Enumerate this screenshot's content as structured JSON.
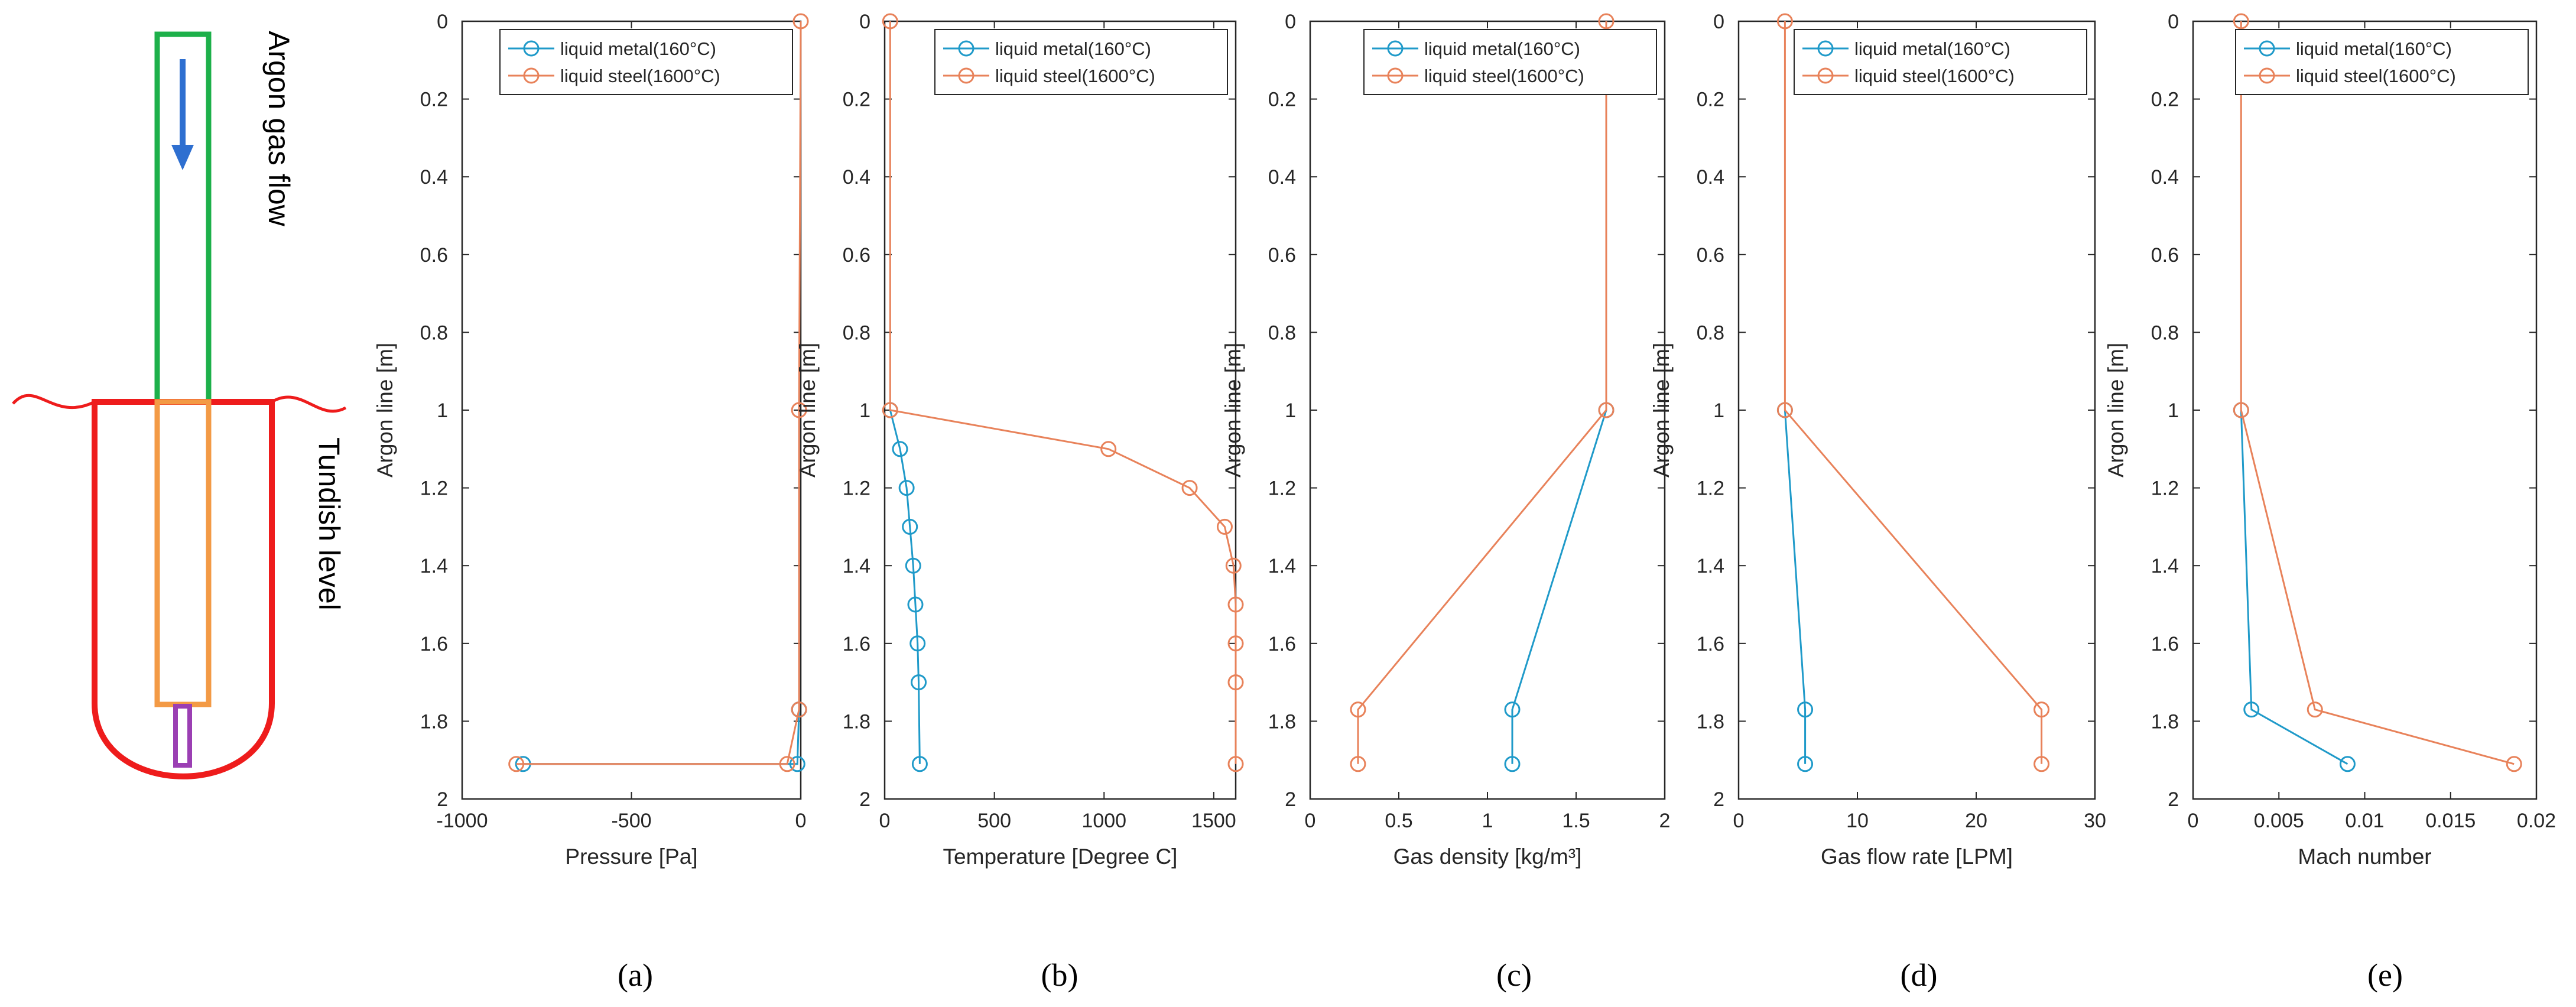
{
  "schematic": {
    "argon_label": "Argon gas flow",
    "tundish_label": "Tundish level",
    "colors": {
      "argon_tube": "#1db04a",
      "arrow": "#2e6fd0",
      "tundish": "#ee1c1c",
      "inner_tube": "#f39a45",
      "nozzle": "#9b3fb3"
    }
  },
  "captions": [
    "(a)",
    "(b)",
    "(c)",
    "(d)",
    "(e)"
  ],
  "series_colors": {
    "liquid metal(160°C)": "#1f9ac9",
    "liquid steel(1600°C)": "#e8825a"
  },
  "chart_data": [
    {
      "type": "line",
      "xlabel": "Pressure [Pa]",
      "ylabel": "Argon line [m]",
      "xlim": [
        -1000,
        0
      ],
      "ylim": [
        0,
        2
      ],
      "xticks": [
        -1000,
        -500,
        0
      ],
      "yticks": [
        0,
        0.2,
        0.4,
        0.6,
        0.8,
        1,
        1.2,
        1.4,
        1.6,
        1.8,
        2
      ],
      "y_reversed": true,
      "legend_position": "top-right",
      "series": [
        {
          "name": "liquid metal(160°C)",
          "x": [
            -5,
            -5,
            -10,
            -820
          ],
          "y": [
            1.77,
            1.77,
            1.91,
            1.91
          ]
        },
        {
          "name": "liquid steel(1600°C)",
          "x": [
            0,
            -5,
            -5,
            -40,
            -840
          ],
          "y": [
            0,
            1,
            1.77,
            1.91,
            1.91
          ]
        }
      ]
    },
    {
      "type": "line",
      "xlabel": "Temperature [Degree C]",
      "ylabel": "Argon line [m]",
      "xlim": [
        0,
        1600
      ],
      "ylim": [
        0,
        2
      ],
      "xticks": [
        0,
        500,
        1000,
        1500
      ],
      "yticks": [
        0,
        0.2,
        0.4,
        0.6,
        0.8,
        1,
        1.2,
        1.4,
        1.6,
        1.8,
        2
      ],
      "y_reversed": true,
      "legend_position": "top-right",
      "series": [
        {
          "name": "liquid metal(160°C)",
          "x": [
            25,
            70,
            100,
            115,
            130,
            140,
            150,
            155,
            160
          ],
          "y": [
            1,
            1.1,
            1.2,
            1.3,
            1.4,
            1.5,
            1.6,
            1.7,
            1.91
          ]
        },
        {
          "name": "liquid steel(1600°C)",
          "x": [
            25,
            25,
            1020,
            1390,
            1550,
            1590,
            1600,
            1600,
            1600,
            1600
          ],
          "y": [
            0,
            1,
            1.1,
            1.2,
            1.3,
            1.4,
            1.5,
            1.6,
            1.7,
            1.91
          ]
        }
      ]
    },
    {
      "type": "line",
      "xlabel": "Gas density [kg/m³]",
      "ylabel": "Argon line [m]",
      "xlim": [
        0,
        2
      ],
      "ylim": [
        0,
        2
      ],
      "xticks": [
        0,
        0.5,
        1,
        1.5,
        2
      ],
      "yticks": [
        0,
        0.2,
        0.4,
        0.6,
        0.8,
        1,
        1.2,
        1.4,
        1.6,
        1.8,
        2
      ],
      "y_reversed": true,
      "legend_position": "top-right",
      "series": [
        {
          "name": "liquid metal(160°C)",
          "x": [
            1.67,
            1.14,
            1.14
          ],
          "y": [
            1,
            1.77,
            1.91
          ]
        },
        {
          "name": "liquid steel(1600°C)",
          "x": [
            1.67,
            1.67,
            0.27,
            0.27
          ],
          "y": [
            0,
            1,
            1.77,
            1.91
          ]
        }
      ]
    },
    {
      "type": "line",
      "xlabel": "Gas flow rate [LPM]",
      "ylabel": "Argon line [m]",
      "xlim": [
        0,
        30
      ],
      "ylim": [
        0,
        2
      ],
      "xticks": [
        0,
        10,
        20,
        30
      ],
      "yticks": [
        0,
        0.2,
        0.4,
        0.6,
        0.8,
        1,
        1.2,
        1.4,
        1.6,
        1.8,
        2
      ],
      "y_reversed": true,
      "legend_position": "top-right",
      "series": [
        {
          "name": "liquid metal(160°C)",
          "x": [
            3.9,
            5.6,
            5.6
          ],
          "y": [
            1,
            1.77,
            1.91
          ]
        },
        {
          "name": "liquid steel(1600°C)",
          "x": [
            3.9,
            3.9,
            25.5,
            25.5
          ],
          "y": [
            0,
            1,
            1.77,
            1.91
          ]
        }
      ]
    },
    {
      "type": "line",
      "xlabel": "Mach number",
      "ylabel": "Argon line [m]",
      "xlim": [
        0,
        0.02
      ],
      "ylim": [
        0,
        2
      ],
      "xticks": [
        0,
        0.005,
        0.01,
        0.015,
        0.02
      ],
      "yticks": [
        0,
        0.2,
        0.4,
        0.6,
        0.8,
        1,
        1.2,
        1.4,
        1.6,
        1.8,
        2
      ],
      "y_reversed": true,
      "legend_position": "top-right",
      "series": [
        {
          "name": "liquid metal(160°C)",
          "x": [
            0.0028,
            0.0034,
            0.009
          ],
          "y": [
            1,
            1.77,
            1.91
          ]
        },
        {
          "name": "liquid steel(1600°C)",
          "x": [
            0.0028,
            0.0028,
            0.0071,
            0.0187
          ],
          "y": [
            0,
            1,
            1.77,
            1.91
          ]
        }
      ]
    }
  ]
}
